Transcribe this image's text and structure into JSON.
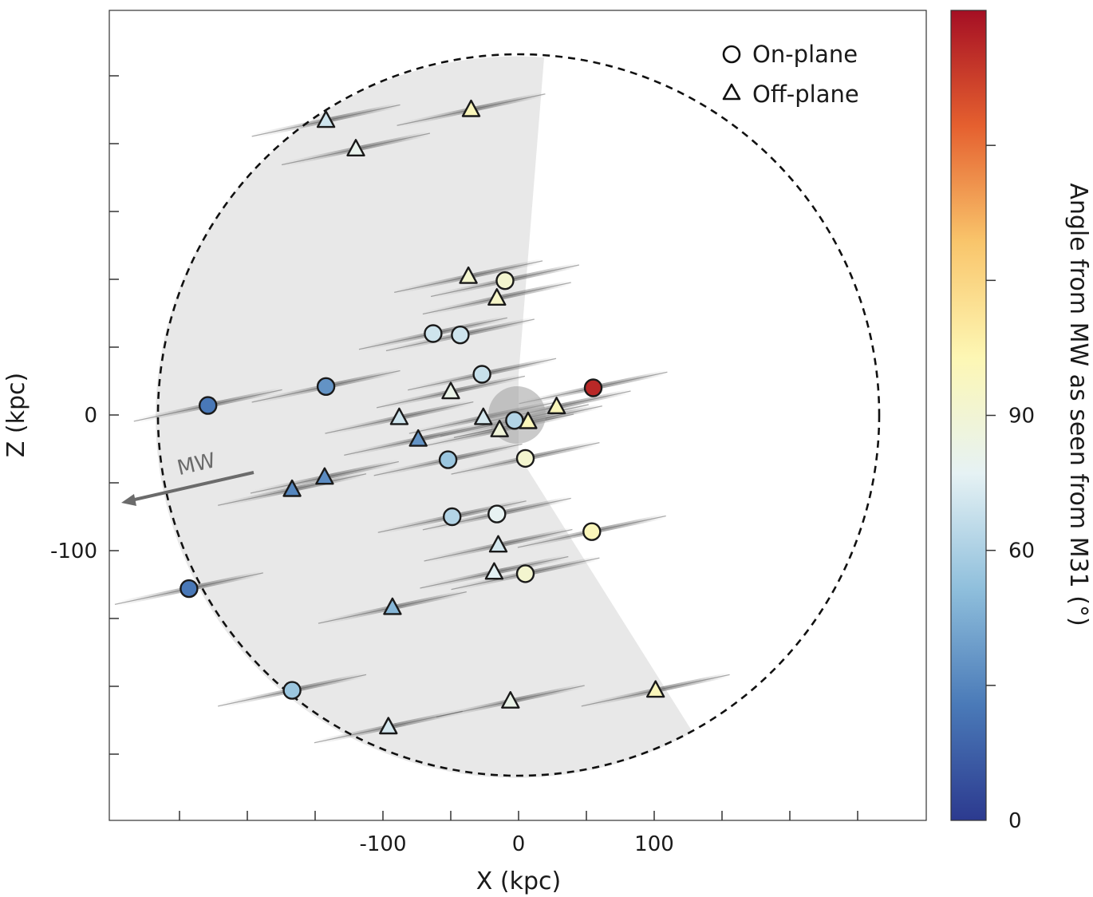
{
  "chart_data": {
    "type": "scatter",
    "xlabel": "X (kpc)",
    "ylabel": "Z (kpc)",
    "xlim": [
      -300,
      300
    ],
    "ylim": [
      -300,
      300
    ],
    "x_ticks": [
      -100,
      0,
      100
    ],
    "y_ticks": [
      0,
      -100
    ],
    "colorbar": {
      "label": "Angle from MW as seen from M31 (°)",
      "range": [
        0,
        180
      ],
      "ticks": [
        0,
        60,
        90
      ],
      "colormap": "RdYlBu_r",
      "stops": [
        "#2c3a8f",
        "#4a7ab8",
        "#8fbfdc",
        "#e6f2f4",
        "#fdf7b4",
        "#f9c56b",
        "#e5602f",
        "#a50f24"
      ]
    },
    "legend": {
      "position": "top-right",
      "entries": [
        {
          "marker": "circle",
          "label": "On-plane"
        },
        {
          "marker": "triangle",
          "label": "Off-plane"
        }
      ]
    },
    "annotation": {
      "text": "MW",
      "kind": "arrow",
      "direction": "left"
    },
    "series": [
      {
        "marker": "circle",
        "points": [
          {
            "x": -229,
            "z": 7,
            "angle": 25
          },
          {
            "x": -142,
            "z": 21,
            "angle": 35
          },
          {
            "x": -27,
            "z": 30,
            "angle": 68
          },
          {
            "x": -63,
            "z": 60,
            "angle": 70
          },
          {
            "x": -43,
            "z": 59,
            "angle": 70
          },
          {
            "x": -10,
            "z": 99,
            "angle": 92
          },
          {
            "x": -3,
            "z": -4,
            "angle": 62
          },
          {
            "x": 55,
            "z": 20,
            "angle": 172
          },
          {
            "x": -52,
            "z": -33,
            "angle": 55
          },
          {
            "x": 5,
            "z": -32,
            "angle": 92
          },
          {
            "x": -49,
            "z": -75,
            "angle": 62
          },
          {
            "x": -16,
            "z": -73,
            "angle": 78
          },
          {
            "x": 54,
            "z": -86,
            "angle": 100
          },
          {
            "x": 5,
            "z": -117,
            "angle": 92
          },
          {
            "x": -243,
            "z": -128,
            "angle": 25
          },
          {
            "x": -167,
            "z": -203,
            "angle": 55
          }
        ]
      },
      {
        "marker": "triangle",
        "points": [
          {
            "x": -142,
            "z": 217,
            "angle": 70
          },
          {
            "x": -120,
            "z": 196,
            "angle": 80
          },
          {
            "x": -35,
            "z": 225,
            "angle": 100
          },
          {
            "x": -37,
            "z": 102,
            "angle": 92
          },
          {
            "x": -16,
            "z": 86,
            "angle": 95
          },
          {
            "x": -50,
            "z": 17,
            "angle": 82
          },
          {
            "x": -88,
            "z": -2,
            "angle": 70
          },
          {
            "x": -26,
            "z": -2,
            "angle": 72
          },
          {
            "x": -14,
            "z": -11,
            "angle": 88
          },
          {
            "x": 7,
            "z": -5,
            "angle": 100
          },
          {
            "x": 28,
            "z": 6,
            "angle": 100
          },
          {
            "x": -74,
            "z": -18,
            "angle": 35
          },
          {
            "x": -167,
            "z": -55,
            "angle": 30
          },
          {
            "x": -143,
            "z": -46,
            "angle": 32
          },
          {
            "x": -15,
            "z": -96,
            "angle": 72
          },
          {
            "x": -18,
            "z": -116,
            "angle": 76
          },
          {
            "x": -93,
            "z": -142,
            "angle": 48
          },
          {
            "x": -6,
            "z": -211,
            "angle": 82
          },
          {
            "x": 101,
            "z": -203,
            "angle": 100
          },
          {
            "x": -96,
            "z": -230,
            "angle": 72
          }
        ]
      }
    ]
  }
}
